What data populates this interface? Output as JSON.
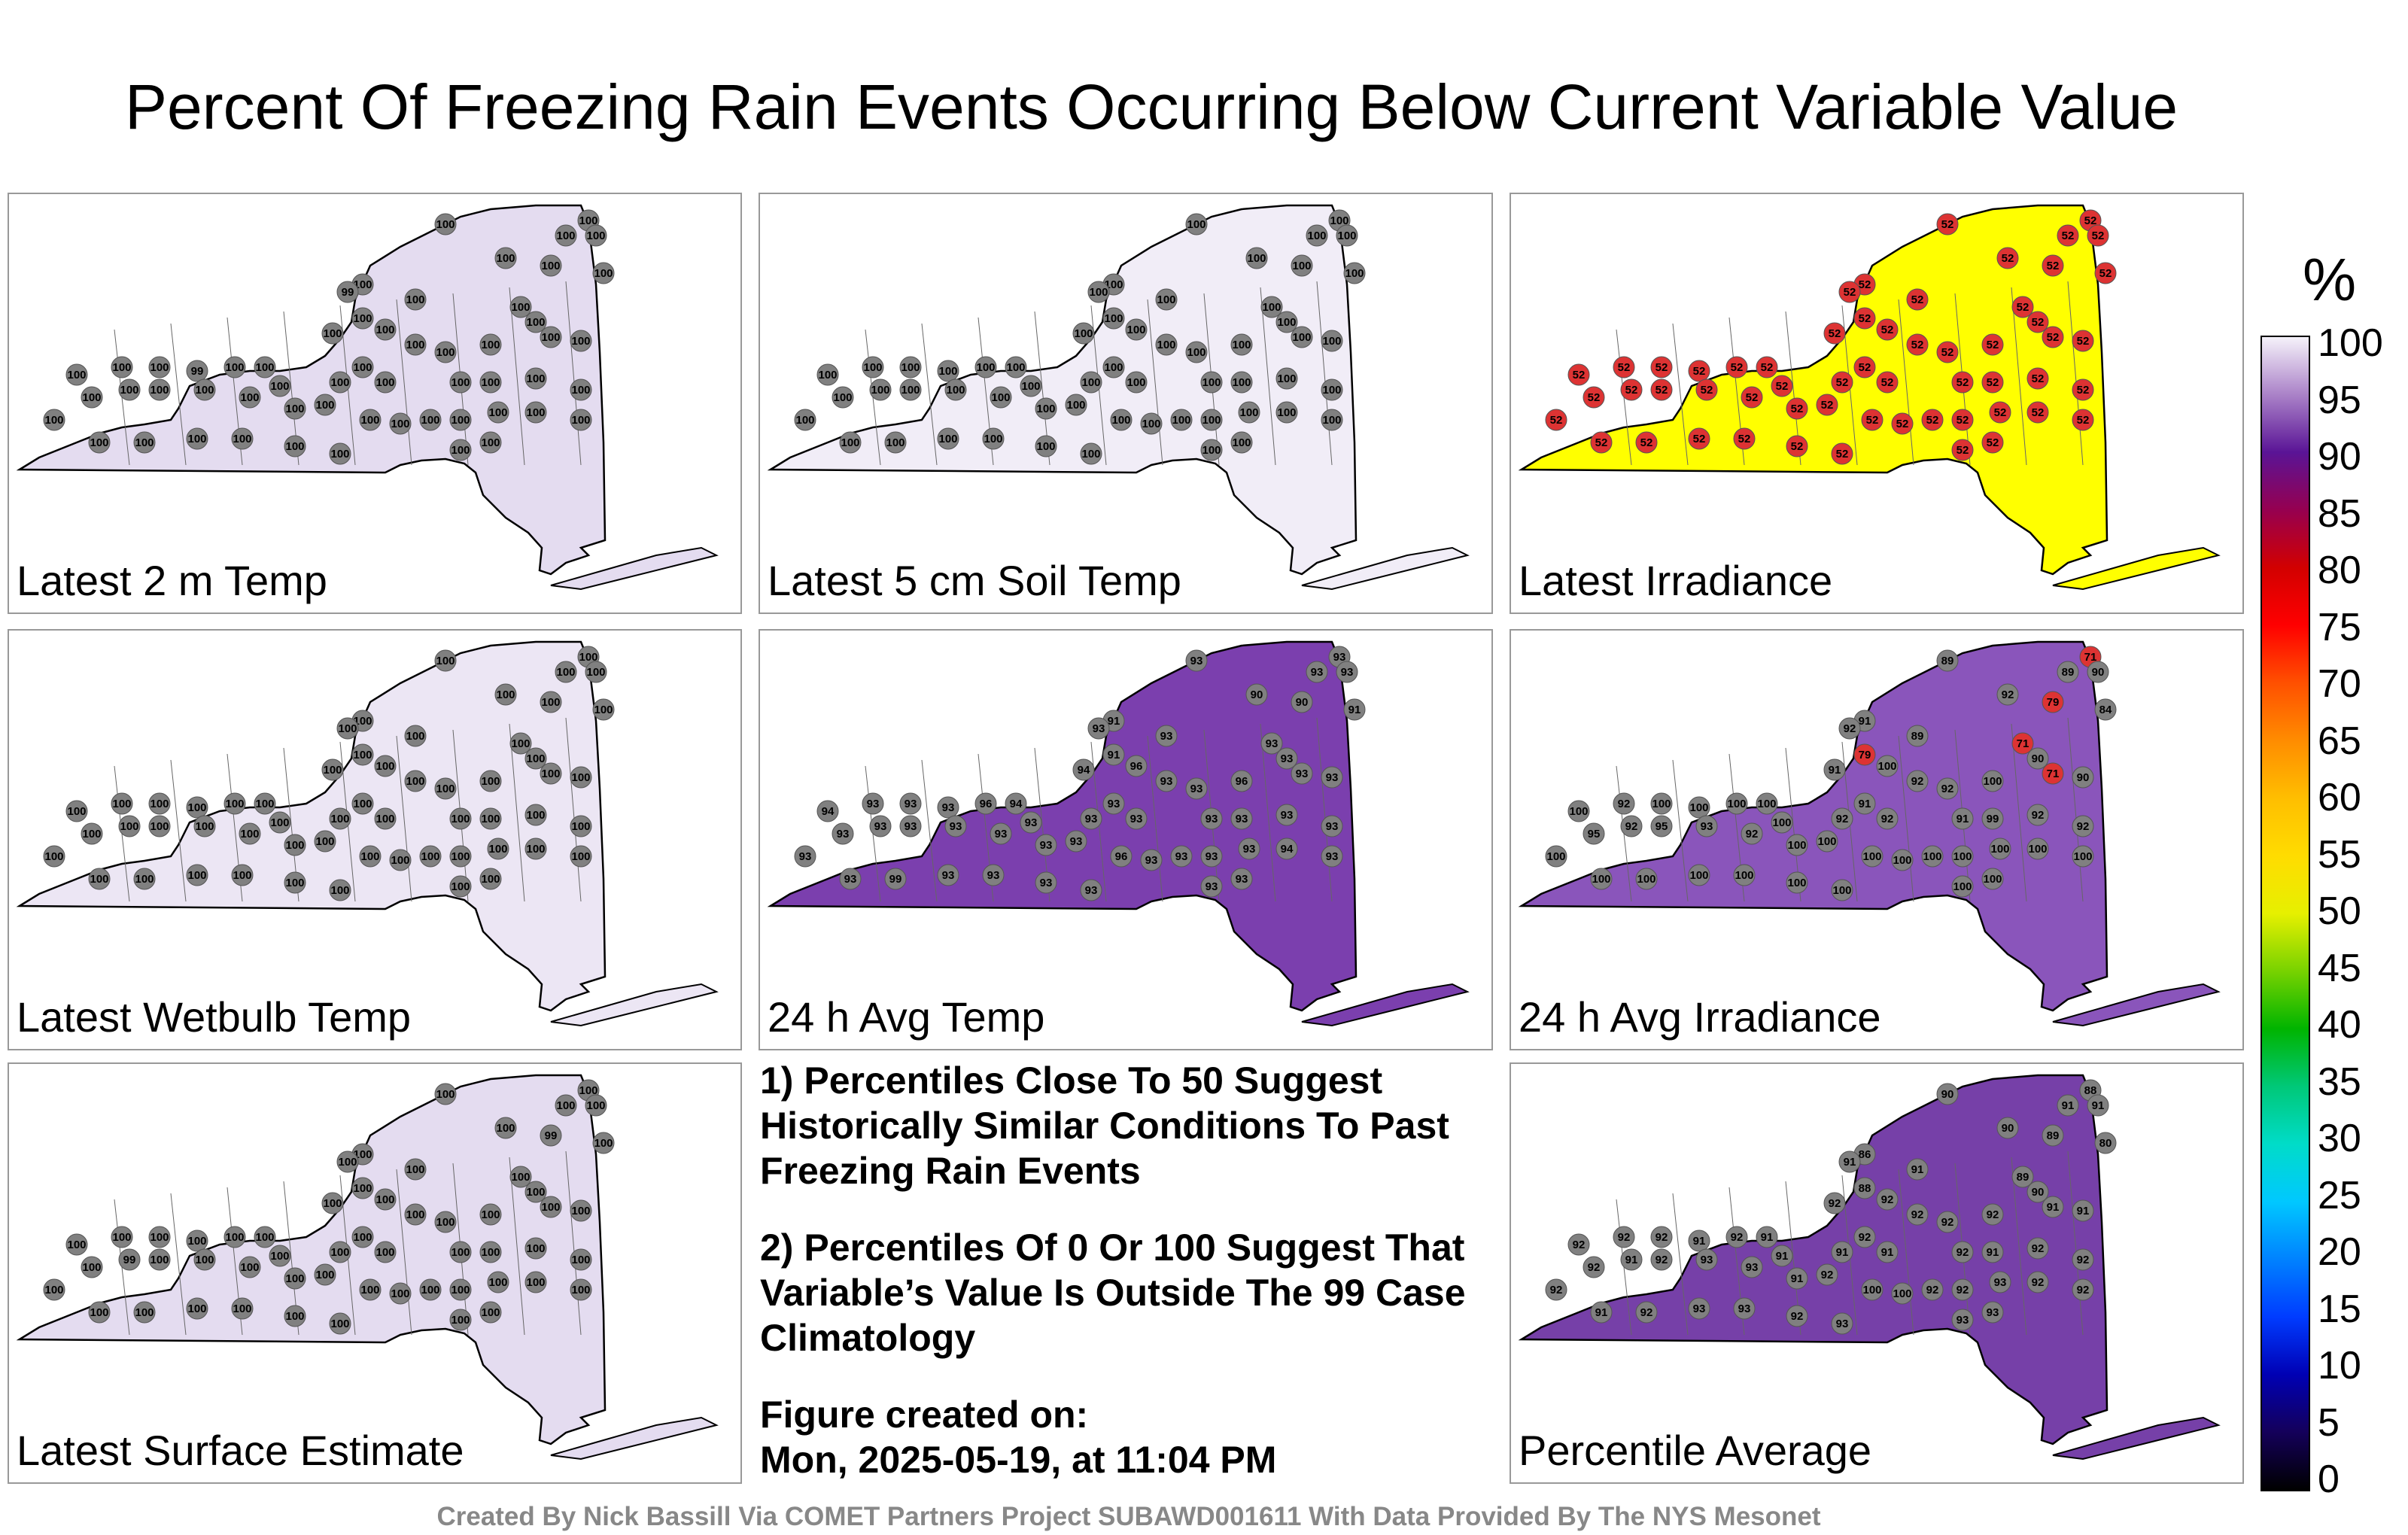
{
  "title": "Percent Of Freezing Rain Events Occurring Below Current Variable Value",
  "colorbar": {
    "unit": "%",
    "ticks": [
      "100",
      "95",
      "90",
      "85",
      "80",
      "75",
      "70",
      "65",
      "60",
      "55",
      "50",
      "45",
      "40",
      "35",
      "30",
      "25",
      "20",
      "15",
      "10",
      "5",
      "0"
    ]
  },
  "notes": {
    "line1": "1) Percentiles Close To 50 Suggest Historically Similar Conditions To Past Freezing Rain Events",
    "line2": "2) Percentiles Of 0 Or 100 Suggest That Variable’s Value Is Outside The 99 Case Climatology",
    "created_label": "Figure created on:",
    "created_value": "Mon, 2025-05-19, at 11:04 PM"
  },
  "credit": "Created By Nick Bassill Via COMET Partners Project SUBAWD001611 With Data Provided By The NYS Mesonet",
  "chart_data": [
    {
      "type": "heatmap",
      "title": "Latest 2 m Temp",
      "fill": "#e4dcf0",
      "values": [
        100,
        100,
        100,
        100,
        100,
        100,
        100,
        100,
        99,
        100,
        100,
        100,
        100,
        100,
        100,
        100,
        100,
        100,
        100,
        100,
        100,
        100,
        100,
        100,
        100,
        100,
        100,
        100,
        100,
        99,
        100,
        100,
        100,
        100,
        100,
        100,
        100,
        100,
        100,
        100,
        100,
        100,
        100,
        100,
        100,
        100,
        100,
        100,
        100,
        100,
        100,
        100,
        100,
        100,
        100,
        100,
        100
      ]
    },
    {
      "type": "heatmap",
      "title": "Latest 5 cm Soil Temp",
      "fill": "#f1edf7",
      "values": [
        100,
        100,
        100,
        100,
        100,
        100,
        100,
        100,
        100,
        100,
        100,
        100,
        100,
        100,
        100,
        100,
        100,
        100,
        100,
        100,
        100,
        100,
        100,
        100,
        100,
        100,
        100,
        100,
        100,
        100,
        100,
        100,
        100,
        100,
        100,
        100,
        100,
        100,
        100,
        100,
        100,
        100,
        100,
        100,
        100,
        100,
        100,
        100,
        100,
        100,
        100,
        100,
        100,
        100,
        100,
        100,
        100
      ]
    },
    {
      "type": "heatmap",
      "title": "Latest Irradiance",
      "fill": "#ffff00",
      "values": [
        52,
        52,
        52,
        52,
        52,
        52,
        52,
        52,
        52,
        52,
        52,
        52,
        52,
        52,
        52,
        52,
        52,
        52,
        52,
        52,
        52,
        52,
        52,
        52,
        52,
        52,
        52,
        52,
        52,
        52,
        52,
        52,
        52,
        52,
        52,
        52,
        52,
        52,
        52,
        52,
        52,
        52,
        52,
        52,
        52,
        52,
        52,
        52,
        52,
        52,
        52,
        52,
        52,
        52,
        52,
        52,
        52
      ]
    },
    {
      "type": "heatmap",
      "title": "Latest Wetbulb Temp",
      "fill": "#ece6f4",
      "values": [
        100,
        100,
        100,
        100,
        100,
        100,
        100,
        100,
        100,
        100,
        100,
        100,
        100,
        100,
        100,
        100,
        100,
        100,
        100,
        100,
        100,
        100,
        100,
        100,
        100,
        100,
        100,
        100,
        100,
        100,
        100,
        100,
        100,
        100,
        100,
        100,
        100,
        100,
        100,
        100,
        100,
        100,
        100,
        100,
        100,
        100,
        100,
        100,
        100,
        100,
        100,
        100,
        100,
        100,
        100,
        100,
        100
      ]
    },
    {
      "type": "heatmap",
      "title": "24 h Avg Temp",
      "fill": "#7b3fae",
      "values": [
        93,
        93,
        93,
        93,
        90,
        90,
        91,
        91,
        93,
        93,
        91,
        93,
        93,
        93,
        93,
        94,
        96,
        93,
        93,
        96,
        93,
        93,
        93,
        93,
        93,
        93,
        93,
        93,
        93,
        93,
        96,
        94,
        94,
        93,
        93,
        93,
        93,
        93,
        93,
        93,
        93,
        96,
        93,
        93,
        93,
        93,
        94,
        93,
        93,
        93,
        99,
        93,
        93,
        93,
        93,
        93,
        93
      ]
    },
    {
      "type": "heatmap",
      "title": "24 h Avg Irradiance",
      "fill": "#8a55bb",
      "values": [
        89,
        71,
        90,
        89,
        92,
        79,
        84,
        91,
        92,
        89,
        79,
        71,
        90,
        71,
        90,
        91,
        100,
        92,
        92,
        100,
        91,
        92,
        92,
        91,
        99,
        92,
        92,
        92,
        100,
        100,
        100,
        100,
        100,
        95,
        92,
        95,
        93,
        92,
        100,
        100,
        100,
        100,
        100,
        100,
        100,
        100,
        100,
        100,
        100,
        100,
        100,
        100,
        100,
        100,
        100,
        100,
        100
      ]
    },
    {
      "type": "heatmap",
      "title": "Latest Surface Estimate",
      "fill": "#e4dcf0",
      "values": [
        100,
        100,
        100,
        100,
        100,
        99,
        100,
        100,
        100,
        100,
        100,
        100,
        100,
        100,
        100,
        100,
        100,
        100,
        100,
        100,
        100,
        100,
        100,
        100,
        100,
        100,
        100,
        100,
        100,
        100,
        100,
        100,
        100,
        100,
        99,
        100,
        100,
        100,
        100,
        100,
        100,
        100,
        100,
        100,
        100,
        100,
        100,
        100,
        100,
        100,
        100,
        100,
        100,
        100,
        100,
        100,
        100
      ]
    },
    {
      "type": "heatmap",
      "title": "Percentile Average",
      "fill": "#7640a8",
      "values": [
        90,
        88,
        91,
        91,
        90,
        89,
        80,
        86,
        91,
        91,
        88,
        89,
        90,
        91,
        91,
        92,
        92,
        92,
        92,
        92,
        92,
        91,
        91,
        92,
        91,
        92,
        92,
        92,
        92,
        91,
        92,
        91,
        92,
        92,
        91,
        92,
        93,
        93,
        91,
        91,
        92,
        100,
        100,
        92,
        92,
        93,
        92,
        92,
        92,
        91,
        92,
        93,
        93,
        92,
        93,
        93,
        93
      ]
    }
  ]
}
